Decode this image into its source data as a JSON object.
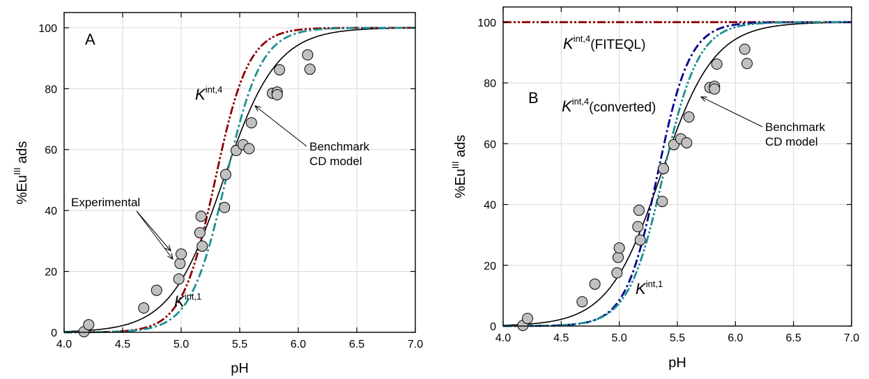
{
  "figure": {
    "colors": {
      "benchmark": "#000000",
      "k4": "#8b0000",
      "k4_converted": "#00008b",
      "k1": "#1a9090",
      "marker_fill": "#c0c0c0",
      "marker_edge": "#000000"
    }
  },
  "chart_data": [
    {
      "type": "line",
      "panel_label": "A",
      "xlabel": "pH",
      "ylabel_main": "%Eu",
      "ylabel_sup": "III",
      "ylabel_suffix": " ads",
      "xlim": [
        4.0,
        7.0
      ],
      "ylim": [
        0,
        105
      ],
      "xticks": [
        4.0,
        4.5,
        5.0,
        5.5,
        6.0,
        6.5,
        7.0
      ],
      "xtick_labels": [
        "4.0",
        "4.5",
        "5.0",
        "5.5",
        "6.0",
        "6.5",
        "7.0"
      ],
      "yticks": [
        0,
        20,
        40,
        60,
        80,
        100
      ],
      "ytick_labels": [
        "0",
        "20",
        "40",
        "60",
        "80",
        "100"
      ],
      "series": [
        {
          "key": "benchmark",
          "style": "solid",
          "color": "#000000",
          "midpoint": 5.36,
          "slope": 4.4,
          "max": 100
        },
        {
          "key": "k4",
          "style": "dashdotdot",
          "color": "#8b0000",
          "midpoint": 5.29,
          "slope": 7.0,
          "max": 100
        },
        {
          "key": "k1",
          "style": "dashdot",
          "color": "#1a9090",
          "midpoint": 5.38,
          "slope": 6.6,
          "max": 100
        }
      ],
      "experimental": [
        [
          4.17,
          0.2
        ],
        [
          4.21,
          2.5
        ],
        [
          4.68,
          8.0
        ],
        [
          4.79,
          13.8
        ],
        [
          4.98,
          17.5
        ],
        [
          4.99,
          22.6
        ],
        [
          5.0,
          25.7
        ],
        [
          5.16,
          32.7
        ],
        [
          5.17,
          38.1
        ],
        [
          5.18,
          28.3
        ],
        [
          5.37,
          41.0
        ],
        [
          5.38,
          51.8
        ],
        [
          5.47,
          59.7
        ],
        [
          5.53,
          61.6
        ],
        [
          5.58,
          60.3
        ],
        [
          5.6,
          68.8
        ],
        [
          5.78,
          78.5
        ],
        [
          5.82,
          78.9
        ],
        [
          5.82,
          78.0
        ],
        [
          5.84,
          86.2
        ],
        [
          6.08,
          91.1
        ],
        [
          6.1,
          86.4
        ]
      ],
      "annotations": {
        "panel": "A",
        "experimental": "Experimental",
        "benchmark_line1": "Benchmark",
        "benchmark_line2": "CD model",
        "k4_main": "K",
        "k4_sup": "int,4",
        "k4_suffix": "",
        "k1_main": "K",
        "k1_sup": "int,1"
      }
    },
    {
      "type": "line",
      "panel_label": "B",
      "xlabel": "pH",
      "ylabel_main": "%Eu",
      "ylabel_sup": "III",
      "ylabel_suffix": " ads",
      "xlim": [
        4.0,
        7.0
      ],
      "ylim": [
        0,
        105
      ],
      "xticks": [
        4.0,
        4.5,
        5.0,
        5.5,
        6.0,
        6.5,
        7.0
      ],
      "xtick_labels": [
        "4.0",
        "4.5",
        "5.0",
        "5.5",
        "6.0",
        "6.5",
        "7.0"
      ],
      "yticks": [
        0,
        20,
        40,
        60,
        80,
        100
      ],
      "ytick_labels": [
        "0",
        "20",
        "40",
        "60",
        "80",
        "100"
      ],
      "series": [
        {
          "key": "benchmark",
          "style": "solid",
          "color": "#000000",
          "midpoint": 5.36,
          "slope": 4.4,
          "max": 100
        },
        {
          "key": "k4_fiteql",
          "style": "dashdotdot",
          "color": "#8b0000",
          "constant": 100
        },
        {
          "key": "k4_converted",
          "style": "dashdot",
          "color": "#00008b",
          "midpoint": 5.33,
          "slope": 7.2,
          "max": 100
        },
        {
          "key": "k1",
          "style": "dashdotdot",
          "color": "#1a9090",
          "midpoint": 5.38,
          "slope": 6.6,
          "max": 100
        }
      ],
      "experimental": [
        [
          4.17,
          0.2
        ],
        [
          4.21,
          2.5
        ],
        [
          4.68,
          8.0
        ],
        [
          4.79,
          13.8
        ],
        [
          4.98,
          17.5
        ],
        [
          4.99,
          22.6
        ],
        [
          5.0,
          25.7
        ],
        [
          5.16,
          32.7
        ],
        [
          5.17,
          38.1
        ],
        [
          5.18,
          28.3
        ],
        [
          5.37,
          41.0
        ],
        [
          5.38,
          51.8
        ],
        [
          5.47,
          59.7
        ],
        [
          5.53,
          61.6
        ],
        [
          5.58,
          60.3
        ],
        [
          5.6,
          68.8
        ],
        [
          5.78,
          78.5
        ],
        [
          5.82,
          78.9
        ],
        [
          5.82,
          78.0
        ],
        [
          5.84,
          86.2
        ],
        [
          6.08,
          91.1
        ],
        [
          6.1,
          86.4
        ]
      ],
      "annotations": {
        "panel": "B",
        "benchmark_line1": "Benchmark",
        "benchmark_line2": "CD model",
        "k4f_main": "K",
        "k4f_sup": "int,4",
        "k4f_suffix": "(FITEQL)",
        "k4c_main": "K",
        "k4c_sup": "int,4",
        "k4c_suffix": "(converted)",
        "k1_main": "K",
        "k1_sup": "int,1"
      }
    }
  ]
}
